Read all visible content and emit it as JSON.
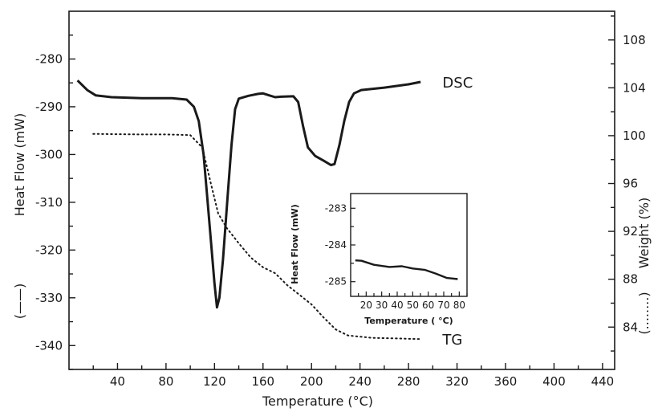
{
  "chart_data": [
    {
      "type": "line",
      "xlabel": "Temperature (°C)",
      "ylabel": "Heat Flow (mW)",
      "y2label": "Weight (%)",
      "xlim": [
        0,
        450
      ],
      "ylim": [
        -345,
        -270
      ],
      "y2lim": [
        80.46,
        110.4
      ],
      "x_ticks": [
        40,
        80,
        120,
        160,
        200,
        240,
        280,
        320,
        360,
        400,
        440
      ],
      "y_ticks": [
        -340,
        -330,
        -320,
        -310,
        -300,
        -290,
        -280
      ],
      "y2_ticks": [
        84,
        88,
        92,
        96,
        100,
        104,
        108
      ],
      "y_axis_legend_symbol": "(——)",
      "y2_axis_legend_symbol": "(........)",
      "series": [
        {
          "name": "DSC",
          "axis": "left",
          "style": "solid",
          "points": [
            [
              7,
              -284.5
            ],
            [
              15,
              -286.5
            ],
            [
              22,
              -287.6
            ],
            [
              35,
              -288
            ],
            [
              60,
              -288.2
            ],
            [
              85,
              -288.2
            ],
            [
              97,
              -288.5
            ],
            [
              103,
              -290
            ],
            [
              107,
              -293
            ],
            [
              111,
              -300
            ],
            [
              114,
              -309
            ],
            [
              117,
              -318
            ],
            [
              120,
              -327
            ],
            [
              122,
              -332
            ],
            [
              124,
              -330
            ],
            [
              127,
              -322
            ],
            [
              131,
              -308
            ],
            [
              134,
              -298
            ],
            [
              137,
              -290.5
            ],
            [
              140,
              -288.3
            ],
            [
              148,
              -287.7
            ],
            [
              156,
              -287.3
            ],
            [
              160,
              -287.2
            ],
            [
              165,
              -287.6
            ],
            [
              170,
              -288
            ],
            [
              175,
              -287.9
            ],
            [
              185,
              -287.8
            ],
            [
              189,
              -289
            ],
            [
              193,
              -294
            ],
            [
              197,
              -298.5
            ],
            [
              203,
              -300.3
            ],
            [
              210,
              -301.3
            ],
            [
              216,
              -302.2
            ],
            [
              219,
              -302
            ],
            [
              223,
              -298
            ],
            [
              227,
              -293
            ],
            [
              231,
              -289
            ],
            [
              235,
              -287.2
            ],
            [
              241,
              -286.5
            ],
            [
              260,
              -286
            ],
            [
              280,
              -285.3
            ],
            [
              290,
              -284.8
            ]
          ],
          "label_at_x": 308
        },
        {
          "name": "TG",
          "axis": "right",
          "style": "dotted",
          "points": [
            [
              20,
              100.15
            ],
            [
              40,
              100.12
            ],
            [
              60,
              100.1
            ],
            [
              80,
              100.1
            ],
            [
              100,
              100.05
            ],
            [
              110,
              99
            ],
            [
              117,
              96
            ],
            [
              123,
              93.5
            ],
            [
              130,
              92.3
            ],
            [
              140,
              91
            ],
            [
              150,
              89.8
            ],
            [
              160,
              89
            ],
            [
              170,
              88.5
            ],
            [
              180,
              87.5
            ],
            [
              190,
              86.7
            ],
            [
              200,
              85.9
            ],
            [
              210,
              84.8
            ],
            [
              220,
              83.8
            ],
            [
              230,
              83.3
            ],
            [
              250,
              83.1
            ],
            [
              270,
              83.05
            ],
            [
              290,
              83.0
            ]
          ],
          "label_at_x": 308
        }
      ],
      "series_labels": [
        "DSC",
        "TG"
      ]
    },
    {
      "type": "line",
      "inset": true,
      "xlabel": "Temperature ( °C)",
      "ylabel": "Heat Flow (mW)",
      "xlim": [
        10,
        85
      ],
      "ylim": [
        -285.4,
        -282.6
      ],
      "x_ticks": [
        20,
        30,
        40,
        50,
        60,
        70,
        80
      ],
      "y_ticks": [
        -285,
        -284,
        -283
      ],
      "series": [
        {
          "points": [
            [
              13,
              -284.42
            ],
            [
              17,
              -284.43
            ],
            [
              25,
              -284.54
            ],
            [
              35,
              -284.6
            ],
            [
              43,
              -284.58
            ],
            [
              50,
              -284.64
            ],
            [
              58,
              -284.68
            ],
            [
              65,
              -284.78
            ],
            [
              72,
              -284.9
            ],
            [
              79,
              -284.93
            ]
          ]
        }
      ]
    }
  ]
}
